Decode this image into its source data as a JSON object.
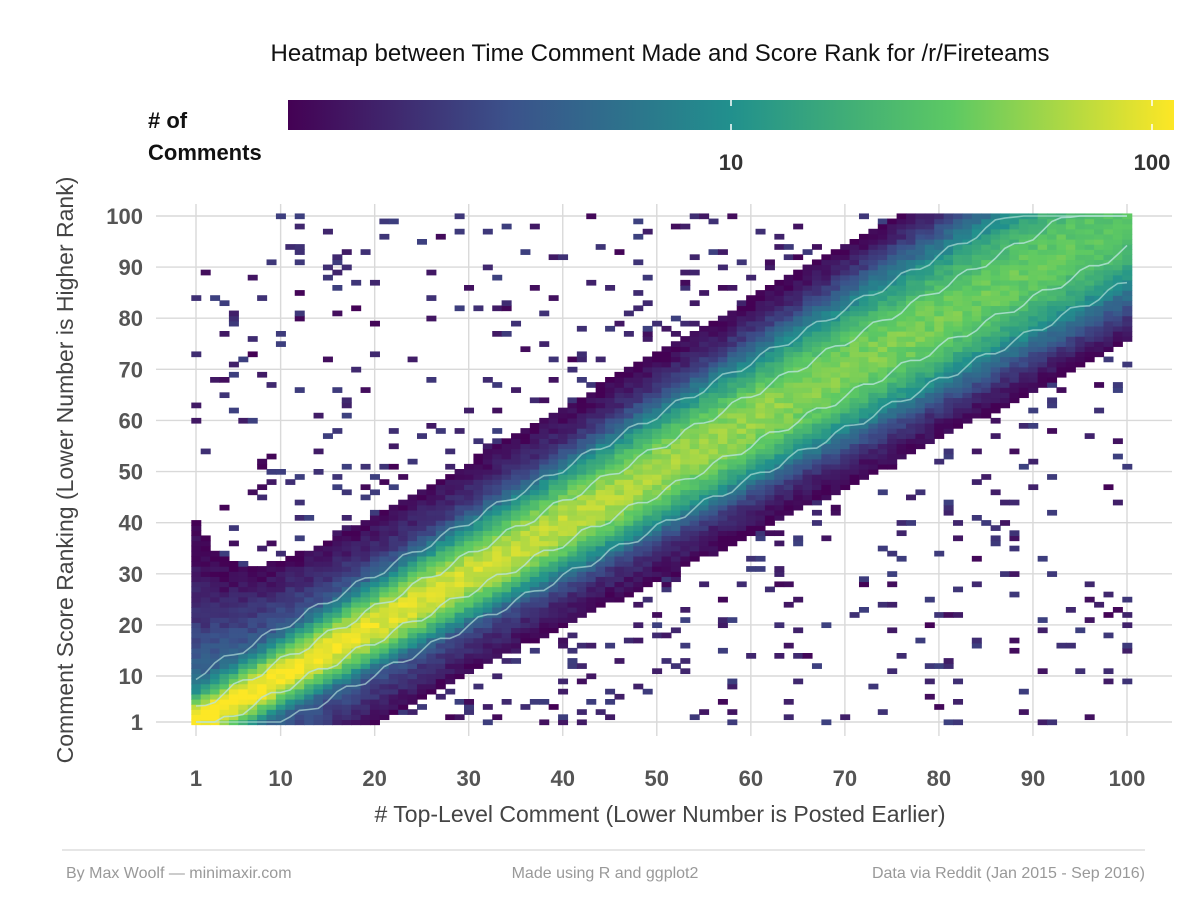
{
  "chart_data": {
    "type": "heatmap",
    "title": "Heatmap between Time Comment Made and Score Rank for /r/Fireteams",
    "xlabel": "# Top-Level Comment (Lower Number is Posted Earlier)",
    "ylabel": "Comment Score Ranking (Lower Number is Higher Rank)",
    "x_range": [
      1,
      100
    ],
    "y_range": [
      1,
      100
    ],
    "x_ticks": [
      1,
      10,
      20,
      30,
      40,
      50,
      60,
      70,
      80,
      90,
      100
    ],
    "y_ticks": [
      1,
      10,
      20,
      30,
      40,
      50,
      60,
      70,
      80,
      90,
      100
    ],
    "grid": true,
    "color_scale": {
      "palette": "viridis",
      "log": true,
      "range": [
        1,
        100
      ],
      "colors": [
        "#440154",
        "#3b528b",
        "#21908d",
        "#5dc963",
        "#fde725"
      ],
      "title_lines": [
        "# of",
        "Comments"
      ],
      "ticks": [
        10,
        100
      ],
      "tick_labels": [
        "10",
        "100"
      ],
      "position": "top"
    },
    "pattern": "Counts peak along the diagonal where comment order equals score rank (~100 near rank 1–10, ~40–60 mid, ~20 near rank 100) and fall off rapidly away from it, with sparse counts of 1–3 off-diagonal; counts below the diagonal near early comments are higher than above it.",
    "contours": true
  },
  "footer": {
    "left": "By Max Woolf — minimaxir.com",
    "center": "Made using R and ggplot2",
    "right": "Data via Reddit (Jan 2015 - Sep 2016)"
  }
}
